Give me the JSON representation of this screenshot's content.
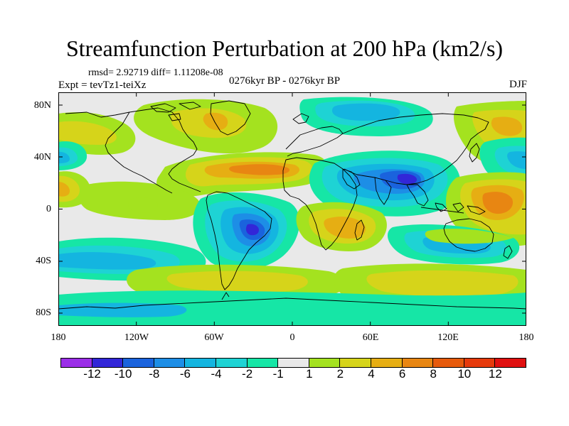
{
  "header": {
    "title": "Streamfunction Perturbation at 200 hPa (km2/s)",
    "stats": "rmsd= 2.92719 diff= 1.11208e-08",
    "subtitle": "0276kyr BP - 0276kyr BP",
    "experiment": "Expt = tevTz1-teiXz",
    "season": "DJF"
  },
  "axes": {
    "lat_labels": [
      "80N",
      "40N",
      "0",
      "40S",
      "80S"
    ],
    "lon_labels": [
      "180",
      "120W",
      "60W",
      "0",
      "60E",
      "120E",
      "180"
    ]
  },
  "colorbar": {
    "labels": [
      "-12",
      "-10",
      "-8",
      "-6",
      "-4",
      "-2",
      "-1",
      "1",
      "2",
      "4",
      "6",
      "8",
      "10",
      "12"
    ],
    "colors": [
      "#9b2ee8",
      "#3226d8",
      "#1a63dd",
      "#1d8ee6",
      "#14b5e0",
      "#1ed3d4",
      "#16e6a6",
      "#e9e9e9",
      "#a4e21f",
      "#d6d41a",
      "#e6ae13",
      "#e88612",
      "#e65a0c",
      "#e63a0c",
      "#e01010"
    ]
  },
  "map": {
    "background_color": "#e9e9e9",
    "coastline_color": "#000000"
  }
}
